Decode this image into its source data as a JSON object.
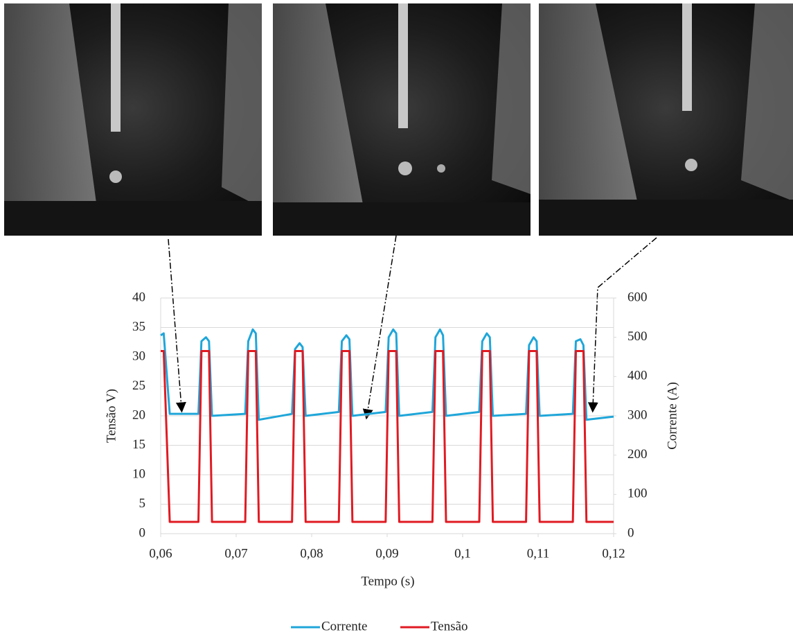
{
  "chart_data": {
    "type": "line",
    "xlabel": "Tempo (s)",
    "ylabel": "Tensão V)",
    "y2label": "Corrente (A)",
    "x": [
      0.06,
      0.0604,
      0.0612,
      0.065,
      0.0654,
      0.066,
      0.0664,
      0.0668,
      0.0712,
      0.0716,
      0.0722,
      0.0726,
      0.073,
      0.0774,
      0.0778,
      0.0784,
      0.0788,
      0.0792,
      0.0836,
      0.084,
      0.0846,
      0.085,
      0.0854,
      0.0898,
      0.0902,
      0.0908,
      0.0912,
      0.0916,
      0.096,
      0.0964,
      0.097,
      0.0974,
      0.0978,
      0.1022,
      0.1026,
      0.1032,
      0.1036,
      0.104,
      0.1084,
      0.1088,
      0.1094,
      0.1098,
      0.1102,
      0.1146,
      0.115,
      0.1156,
      0.116,
      0.1164,
      0.12
    ],
    "series": [
      {
        "name": "Corrente",
        "color": "#1fa6d9",
        "axis": "y2",
        "values": [
          505,
          510,
          305,
          305,
          490,
          500,
          490,
          300,
          305,
          490,
          520,
          510,
          290,
          305,
          470,
          485,
          475,
          300,
          310,
          490,
          505,
          495,
          300,
          310,
          500,
          520,
          510,
          300,
          310,
          500,
          520,
          505,
          300,
          310,
          490,
          510,
          500,
          300,
          305,
          480,
          500,
          490,
          300,
          305,
          490,
          495,
          480,
          290,
          298
        ]
      },
      {
        "name": "Tensão",
        "color": "#e01a22",
        "values": [
          31,
          31,
          2,
          2,
          31,
          31,
          31,
          2,
          2,
          31,
          31,
          31,
          2,
          2,
          31,
          31,
          31,
          2,
          2,
          31,
          31,
          31,
          2,
          2,
          31,
          31,
          31,
          2,
          2,
          31,
          31,
          31,
          2,
          2,
          31,
          31,
          31,
          2,
          2,
          31,
          31,
          31,
          2,
          2,
          31,
          31,
          31,
          2,
          2
        ]
      }
    ],
    "xlim": [
      0.06,
      0.12
    ],
    "xticks": [
      {
        "value": 0.06,
        "label": "0,06"
      },
      {
        "value": 0.07,
        "label": "0,07"
      },
      {
        "value": 0.08,
        "label": "0,08"
      },
      {
        "value": 0.09,
        "label": "0,09"
      },
      {
        "value": 0.1,
        "label": "0,1"
      },
      {
        "value": 0.11,
        "label": "0,11"
      },
      {
        "value": 0.12,
        "label": "0,12"
      }
    ],
    "ylim": [
      0,
      40
    ],
    "yticks": [
      0,
      5,
      10,
      15,
      20,
      25,
      30,
      35,
      40
    ],
    "y2lim": [
      0,
      600
    ],
    "y2ticks": [
      0,
      100,
      200,
      300,
      400,
      500,
      600
    ],
    "grid": true,
    "legend": "bottom"
  }
}
